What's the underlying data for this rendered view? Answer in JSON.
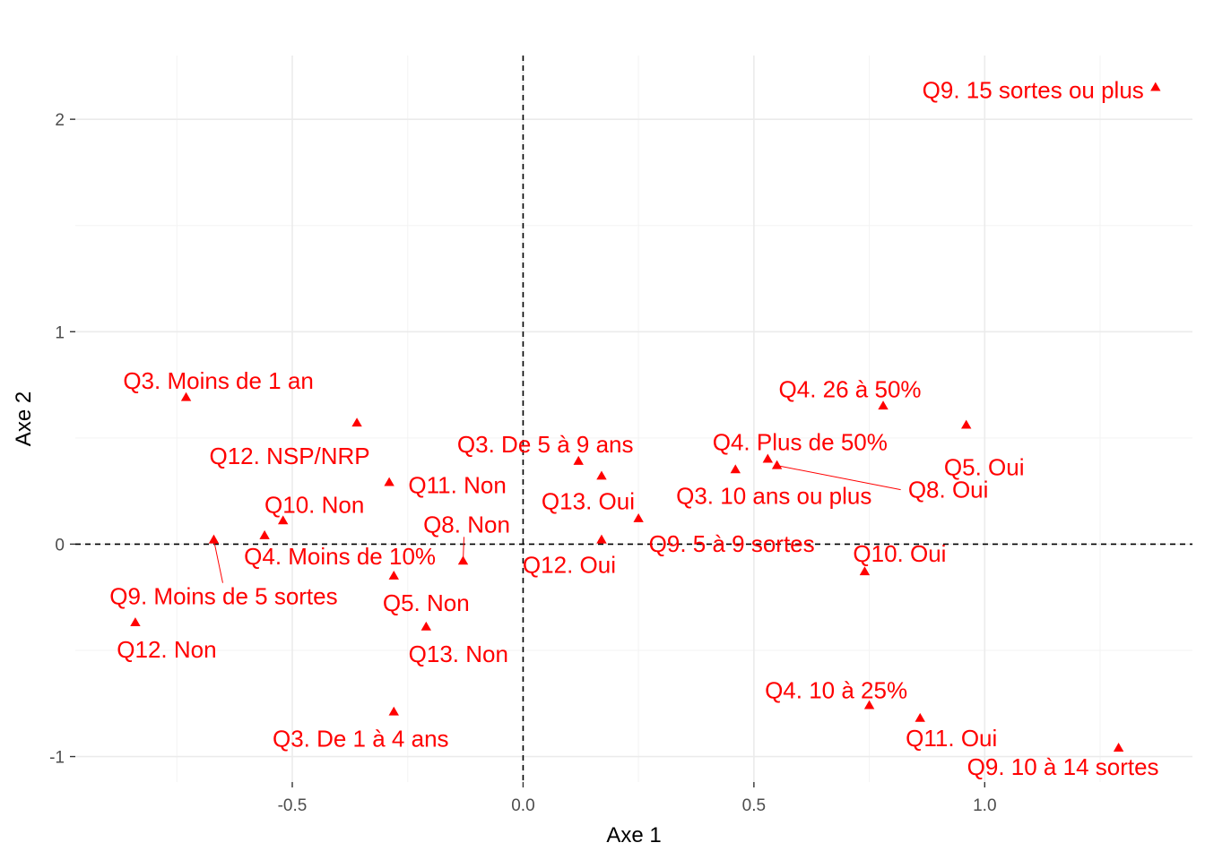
{
  "chart_data": {
    "type": "scatter",
    "xlabel": "Axe 1",
    "ylabel": "Axe 2",
    "xlim": [
      -0.97,
      1.45
    ],
    "ylim": [
      -1.12,
      2.3
    ],
    "x_ticks": [
      -0.5,
      0.0,
      0.5,
      1.0
    ],
    "x_tick_labels": [
      "-0.5",
      "0.0",
      "0.5",
      "1.0"
    ],
    "y_ticks": [
      -1,
      0,
      1,
      2
    ],
    "y_tick_labels": [
      "-1",
      "0",
      "1",
      "2"
    ],
    "reference_lines": {
      "x": 0,
      "y": 0,
      "style": "dashed"
    },
    "grid": true,
    "marker": "triangle",
    "marker_color": "#ff0000",
    "points": [
      {
        "label": "Q9. 15 sortes ou plus",
        "x": 1.37,
        "y": 2.15
      },
      {
        "label": "Q3. Moins de 1 an",
        "x": -0.73,
        "y": 0.69
      },
      {
        "label": "Q12. NSP/NRP",
        "x": -0.36,
        "y": 0.57
      },
      {
        "label": "Q4. 26 à 50%",
        "x": 0.78,
        "y": 0.65
      },
      {
        "label": "Q5. Oui",
        "x": 0.96,
        "y": 0.56
      },
      {
        "label": "Q3. De 5 à 9 ans",
        "x": 0.12,
        "y": 0.39
      },
      {
        "label": "Q13. Oui",
        "x": 0.17,
        "y": 0.32
      },
      {
        "label": "Q4. Plus de 50%",
        "x": 0.53,
        "y": 0.4
      },
      {
        "label": "Q8. Oui",
        "x": 0.55,
        "y": 0.37
      },
      {
        "label": "Q3. 10 ans ou plus",
        "x": 0.46,
        "y": 0.35
      },
      {
        "label": "Q11. Non",
        "x": -0.29,
        "y": 0.29
      },
      {
        "label": "Q10. Non",
        "x": -0.52,
        "y": 0.11
      },
      {
        "label": "Q8. Non",
        "x": -0.13,
        "y": -0.08
      },
      {
        "label": "Q9. 5 à 9 sortes",
        "x": 0.25,
        "y": 0.12
      },
      {
        "label": "Q12. Oui",
        "x": 0.17,
        "y": 0.02
      },
      {
        "label": "Q4. Moins de 10%",
        "x": -0.56,
        "y": 0.04
      },
      {
        "label": "Q9. Moins de 5 sortes",
        "x": -0.67,
        "y": 0.02
      },
      {
        "label": "Q10. Oui",
        "x": 0.74,
        "y": -0.13
      },
      {
        "label": "Q5. Non",
        "x": -0.28,
        "y": -0.15
      },
      {
        "label": "Q12. Non",
        "x": -0.84,
        "y": -0.37
      },
      {
        "label": "Q13. Non",
        "x": -0.21,
        "y": -0.39
      },
      {
        "label": "Q4. 10 à 25%",
        "x": 0.75,
        "y": -0.76
      },
      {
        "label": "Q11. Oui",
        "x": 0.86,
        "y": -0.82
      },
      {
        "label": "Q3. De 1 à 4 ans",
        "x": -0.28,
        "y": -0.79
      },
      {
        "label": "Q9. 10 à 14 sortes",
        "x": 1.29,
        "y": -0.96
      }
    ]
  }
}
